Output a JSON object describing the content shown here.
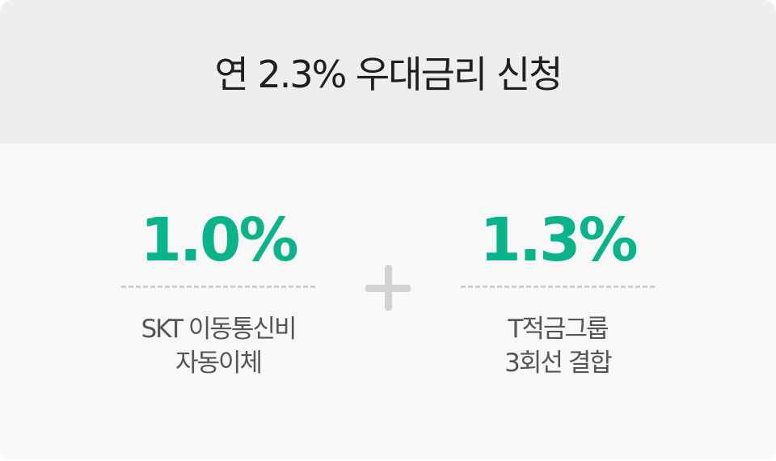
{
  "header": {
    "title": "연 2.3% 우대금리 신청"
  },
  "benefits": [
    {
      "rate": "1.0%",
      "line1": "SKT 이동통신비",
      "line2": "자동이체"
    },
    {
      "rate": "1.3%",
      "line1": "T적금그룹",
      "line2": "3회선 결합"
    }
  ],
  "colors": {
    "accent": "#0ab48a",
    "header_bg": "#eeeeee",
    "body_bg": "#f8f8f8",
    "plus": "#d2d2d2"
  },
  "icons": {
    "combine": "plus-icon"
  }
}
